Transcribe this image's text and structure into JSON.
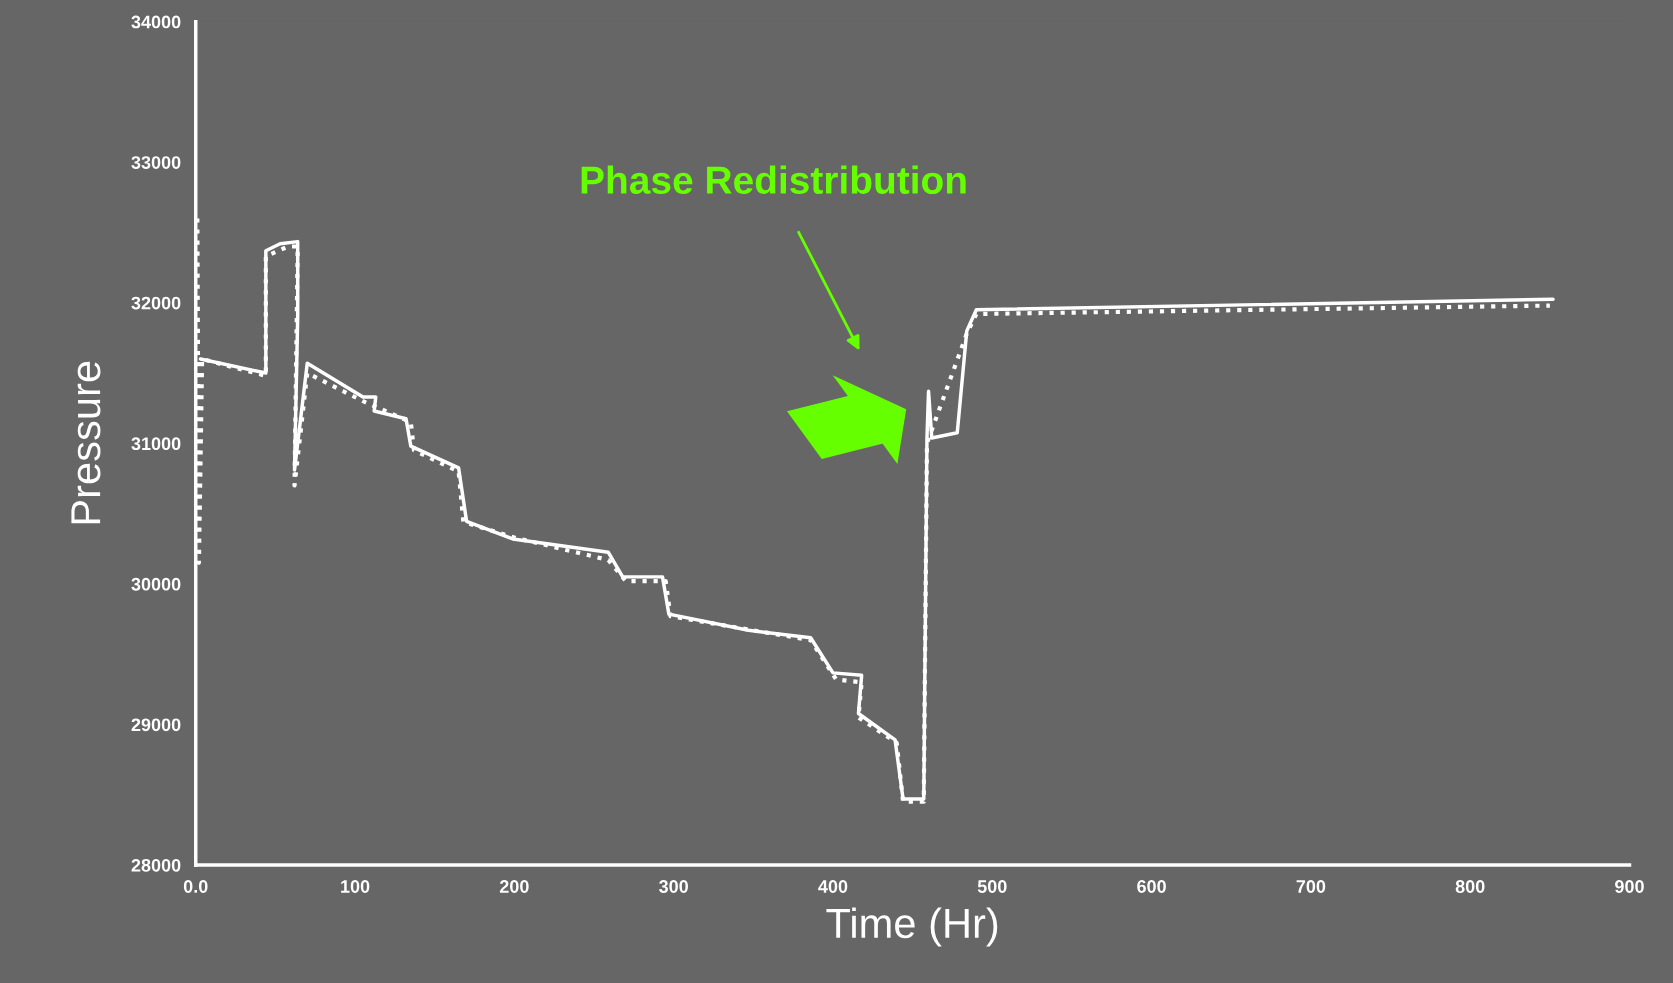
{
  "chart_data": {
    "type": "line",
    "xlabel": "Time (Hr)",
    "ylabel": "Pressure",
    "xlim": [
      0,
      900
    ],
    "xticks": [
      {
        "value": 0,
        "label": "0.0"
      },
      100,
      200,
      300,
      400,
      500,
      600,
      700,
      800,
      900
    ],
    "ylim": [
      28000,
      34000
    ],
    "yticks": [
      28000,
      29000,
      30000,
      31000,
      32000,
      33000,
      34000
    ],
    "grid": false,
    "legend": false,
    "series": [
      {
        "color": "#ffffff",
        "line_style": "solid",
        "x": [
          3,
          44,
          44,
          53,
          64,
          64,
          62,
          70,
          105,
          113,
          112,
          132,
          135,
          165,
          170,
          199,
          259,
          268,
          293,
          297,
          347,
          386,
          400,
          418,
          416,
          439,
          444,
          457,
          459,
          460,
          462,
          478,
          484,
          490,
          852
        ],
        "values": [
          31600,
          31500,
          32370,
          32420,
          32435,
          31900,
          30810,
          31570,
          31330,
          31330,
          31230,
          31175,
          30980,
          30825,
          30445,
          30320,
          30225,
          30050,
          30050,
          29785,
          29670,
          29617,
          29367,
          29350,
          29078,
          28890,
          28470,
          28470,
          31038,
          31370,
          31038,
          31075,
          31800,
          31950,
          32025
        ]
      },
      {
        "color": "#ffffff",
        "line_style": "dotted",
        "x": [
          1,
          2,
          4,
          44,
          44,
          58,
          64,
          62,
          70,
          105,
          135,
          137,
          165,
          168,
          200,
          259,
          270,
          295,
          298,
          386,
          402,
          418,
          416,
          440,
          444,
          457,
          459,
          484,
          490,
          850
        ],
        "values": [
          32600,
          30150,
          31600,
          31480,
          32330,
          32400,
          32400,
          30700,
          31500,
          31300,
          31150,
          30950,
          30800,
          30440,
          30330,
          30170,
          30020,
          30020,
          29770,
          29600,
          29320,
          29300,
          29050,
          28870,
          28450,
          28450,
          31000,
          31780,
          31920,
          31980
        ]
      }
    ],
    "annotations": [
      "Phase Redistribution"
    ]
  }
}
